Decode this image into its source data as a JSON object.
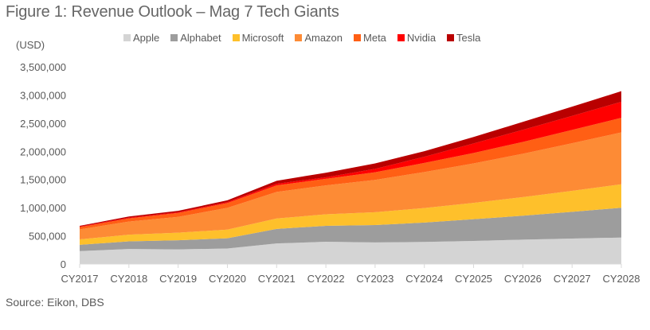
{
  "title": "Figure 1: Revenue Outlook – Mag 7 Tech Giants",
  "source": "Source: Eikon, DBS",
  "chart_data": {
    "type": "area",
    "stacked": true,
    "title": "Figure 1: Revenue Outlook – Mag 7 Tech Giants",
    "ylabel": "(USD)",
    "xlabel": "",
    "ylim": [
      0,
      3500000
    ],
    "yticks": [
      0,
      500000,
      1000000,
      1500000,
      2000000,
      2500000,
      3000000,
      3500000
    ],
    "ytick_labels": [
      "0",
      "500,000",
      "1,000,000",
      "1,500,000",
      "2,000,000",
      "2,500,000",
      "3,000,000",
      "3,500,000"
    ],
    "grid": false,
    "legend_position": "top",
    "categories": [
      "CY2017",
      "CY2018",
      "CY2019",
      "CY2020",
      "CY2021",
      "CY2022",
      "CY2023",
      "CY2024",
      "CY2025",
      "CY2026",
      "CY2027",
      "CY2028"
    ],
    "series": [
      {
        "name": "Apple",
        "color": "#d4d4d4",
        "values": [
          229234,
          265595,
          260174,
          274515,
          365817,
          394328,
          383285,
          391000,
          410000,
          432000,
          452000,
          470000
        ]
      },
      {
        "name": "Alphabet",
        "color": "#9d9d9d",
        "values": [
          110855,
          136819,
          161857,
          182527,
          257637,
          282836,
          307394,
          345000,
          385000,
          425000,
          475000,
          528000
        ]
      },
      {
        "name": "Microsoft",
        "color": "#fec02b",
        "values": [
          96571,
          118459,
          134249,
          153284,
          184903,
          204094,
          227583,
          258000,
          290000,
          330000,
          372000,
          417000
        ]
      },
      {
        "name": "Amazon",
        "color": "#fd8b35",
        "values": [
          177866,
          232887,
          280522,
          386064,
          469822,
          513983,
          574785,
          638000,
          700000,
          770000,
          845000,
          921000
        ]
      },
      {
        "name": "Meta",
        "color": "#ff5f14",
        "values": [
          40653,
          55838,
          70697,
          85965,
          117929,
          116609,
          134902,
          162000,
          185000,
          210000,
          235000,
          259000
        ]
      },
      {
        "name": "Nvidia",
        "color": "#ff0000",
        "values": [
          9714,
          11716,
          10918,
          16675,
          26914,
          26974,
          60922,
          110000,
          170000,
          215000,
          250000,
          284000
        ]
      },
      {
        "name": "Tesla",
        "color": "#b90000",
        "values": [
          11759,
          21461,
          24578,
          31536,
          53823,
          81462,
          96773,
          98000,
          115000,
          140000,
          163000,
          188000
        ]
      }
    ]
  }
}
